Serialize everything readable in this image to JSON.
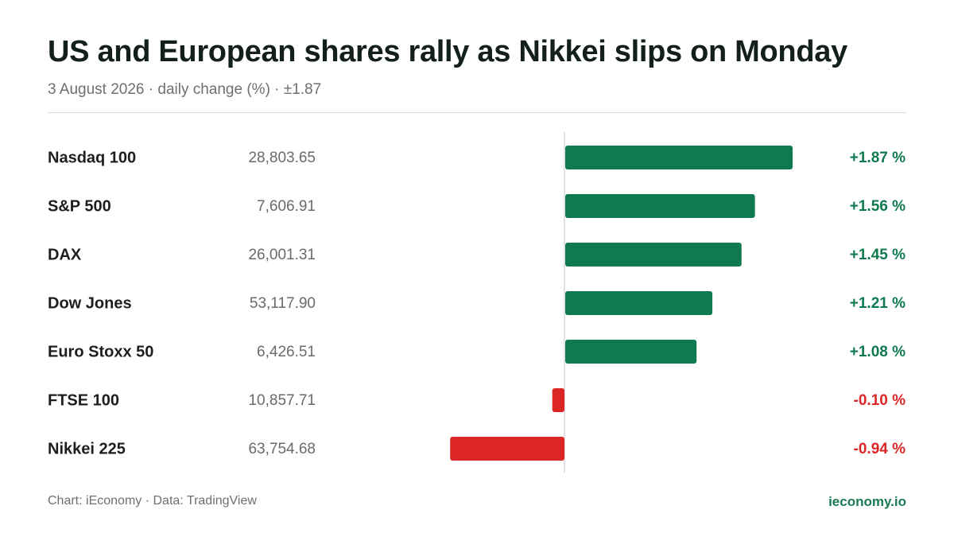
{
  "header": {
    "title": "US and European shares rally as Nikkei slips on Monday",
    "subtitle": "3 August 2026 · daily change (%) · ±1.87"
  },
  "footer": {
    "source": "Chart: iEconomy · Data: TradingView",
    "brand": "ieconomy.io"
  },
  "colors": {
    "positive": "#0f7a4f",
    "negative": "#dc2626",
    "axis": "#d9d9d9"
  },
  "chart_data": {
    "type": "bar",
    "orientation": "horizontal",
    "xlim": [
      -1.87,
      1.87
    ],
    "categories": [
      "Nasdaq 100",
      "S&P 500",
      "DAX",
      "Dow Jones",
      "Euro Stoxx 50",
      "FTSE 100",
      "Nikkei 225"
    ],
    "levels": [
      "28,803.65",
      "7,606.91",
      "26,001.31",
      "53,117.90",
      "6,426.51",
      "10,857.71",
      "63,754.68"
    ],
    "values": [
      1.87,
      1.56,
      1.45,
      1.21,
      1.08,
      -0.1,
      -0.94
    ],
    "value_labels": [
      "+1.87 %",
      "+1.56 %",
      "+1.45 %",
      "+1.21 %",
      "+1.08 %",
      "-0.10 %",
      "-0.94 %"
    ],
    "grid": false,
    "legend": "none"
  }
}
